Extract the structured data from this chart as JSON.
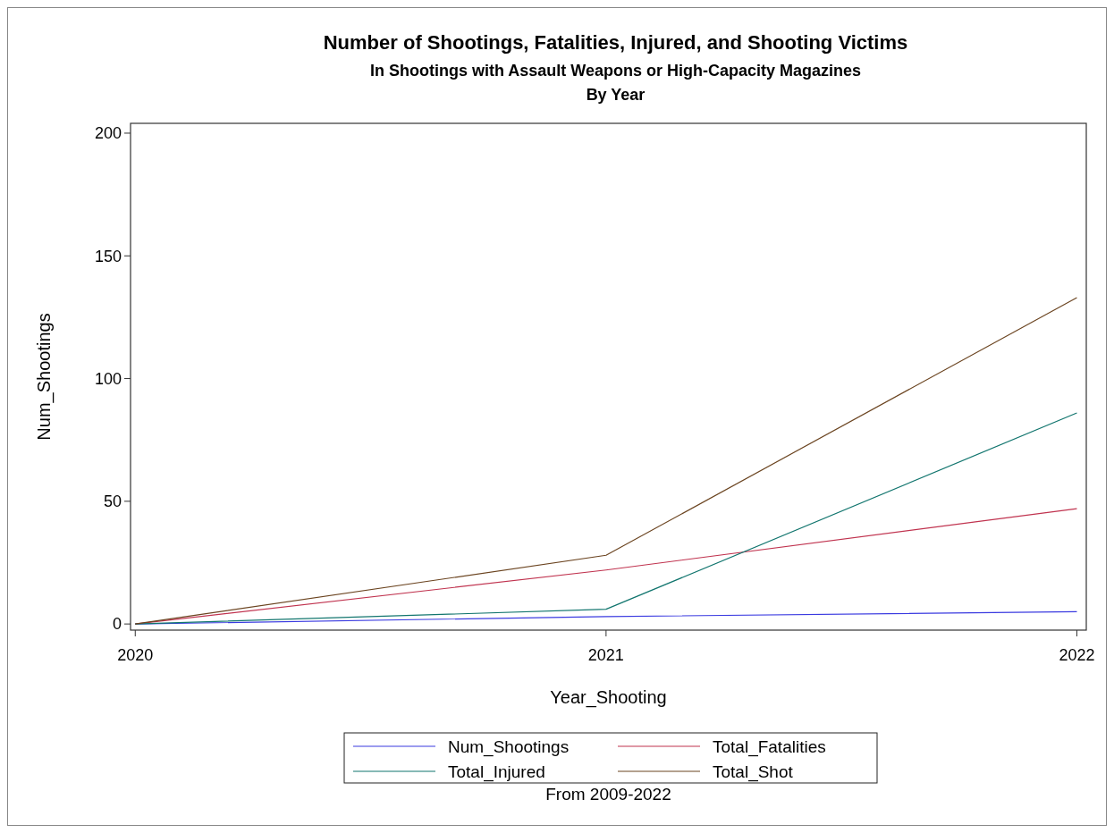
{
  "chart_data": {
    "type": "line",
    "title": "Number of Shootings, Fatalities, Injured, and Shooting Victims",
    "subtitle": "In Shootings with Assault Weapons or High-Capacity Magazines\nBy Year",
    "xlabel": "Year_Shooting",
    "ylabel": "Num_Shootings",
    "annotations": [
      "From 2009-2022"
    ],
    "x": [
      2020,
      2021,
      2022
    ],
    "xlim": [
      2019.99,
      2022.02
    ],
    "xticks": [
      2020,
      2021,
      2022
    ],
    "ylim": [
      -2.5,
      204
    ],
    "yticks": [
      0,
      50,
      100,
      150,
      200
    ],
    "series": [
      {
        "name": "Num_Shootings",
        "color": "#3a3ae0",
        "values": [
          0,
          3,
          5
        ]
      },
      {
        "name": "Total_Fatalities",
        "color": "#c0334f",
        "values": [
          0,
          22,
          47
        ]
      },
      {
        "name": "Total_Injured",
        "color": "#11756e",
        "values": [
          0,
          6,
          86
        ]
      },
      {
        "name": "Total_Shot",
        "color": "#6b4420",
        "values": [
          0,
          28,
          133
        ]
      }
    ],
    "legend": "bottom",
    "grid": false,
    "marker": "none",
    "line_style": "solid"
  }
}
